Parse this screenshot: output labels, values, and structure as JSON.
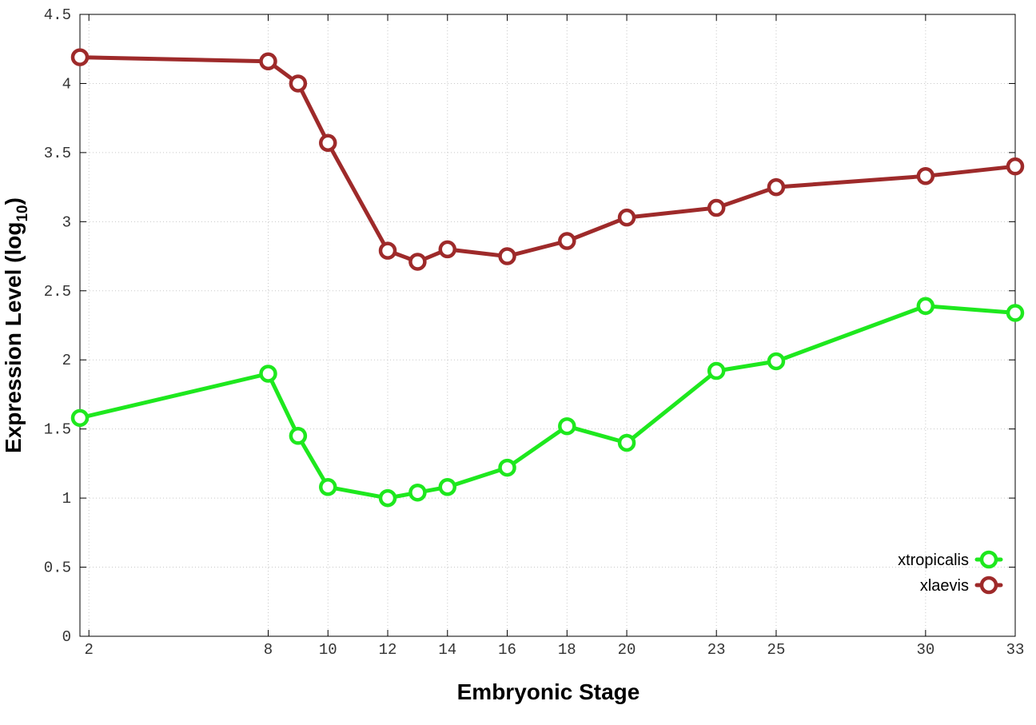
{
  "chart_data": {
    "type": "line",
    "xlabel": "Embryonic Stage",
    "ylabel_main": "Expression Level (log",
    "ylabel_sub": "10",
    "ylabel_close": ")",
    "xlim": [
      1.7,
      33
    ],
    "ylim": [
      0,
      4.5
    ],
    "x_ticks": [
      2,
      8,
      10,
      12,
      14,
      16,
      18,
      20,
      23,
      25,
      30,
      33
    ],
    "y_ticks": [
      0,
      0.5,
      1,
      1.5,
      2,
      2.5,
      3,
      3.5,
      4,
      4.5
    ],
    "y_tick_labels": [
      "0",
      "0.5",
      "1",
      "1.5",
      "2",
      "2.5",
      "3",
      "3.5",
      "4",
      "4.5"
    ],
    "grid": true,
    "legend_position": "bottom-right",
    "series": [
      {
        "name": "xtropicalis",
        "color": "#1ee81e",
        "x": [
          1.7,
          8,
          9,
          10,
          12,
          13,
          14,
          16,
          18,
          20,
          23,
          25,
          30,
          33
        ],
        "values": [
          1.58,
          1.9,
          1.45,
          1.08,
          1.0,
          1.04,
          1.08,
          1.22,
          1.52,
          1.4,
          1.92,
          1.99,
          2.39,
          2.34
        ]
      },
      {
        "name": "xlaevis",
        "color": "#9e2a2a",
        "x": [
          1.7,
          8,
          9,
          10,
          12,
          13,
          14,
          16,
          18,
          20,
          23,
          25,
          30,
          33
        ],
        "values": [
          4.19,
          4.16,
          4.0,
          3.57,
          2.79,
          2.71,
          2.8,
          2.75,
          2.86,
          3.03,
          3.1,
          3.25,
          3.33,
          3.4
        ]
      }
    ]
  }
}
